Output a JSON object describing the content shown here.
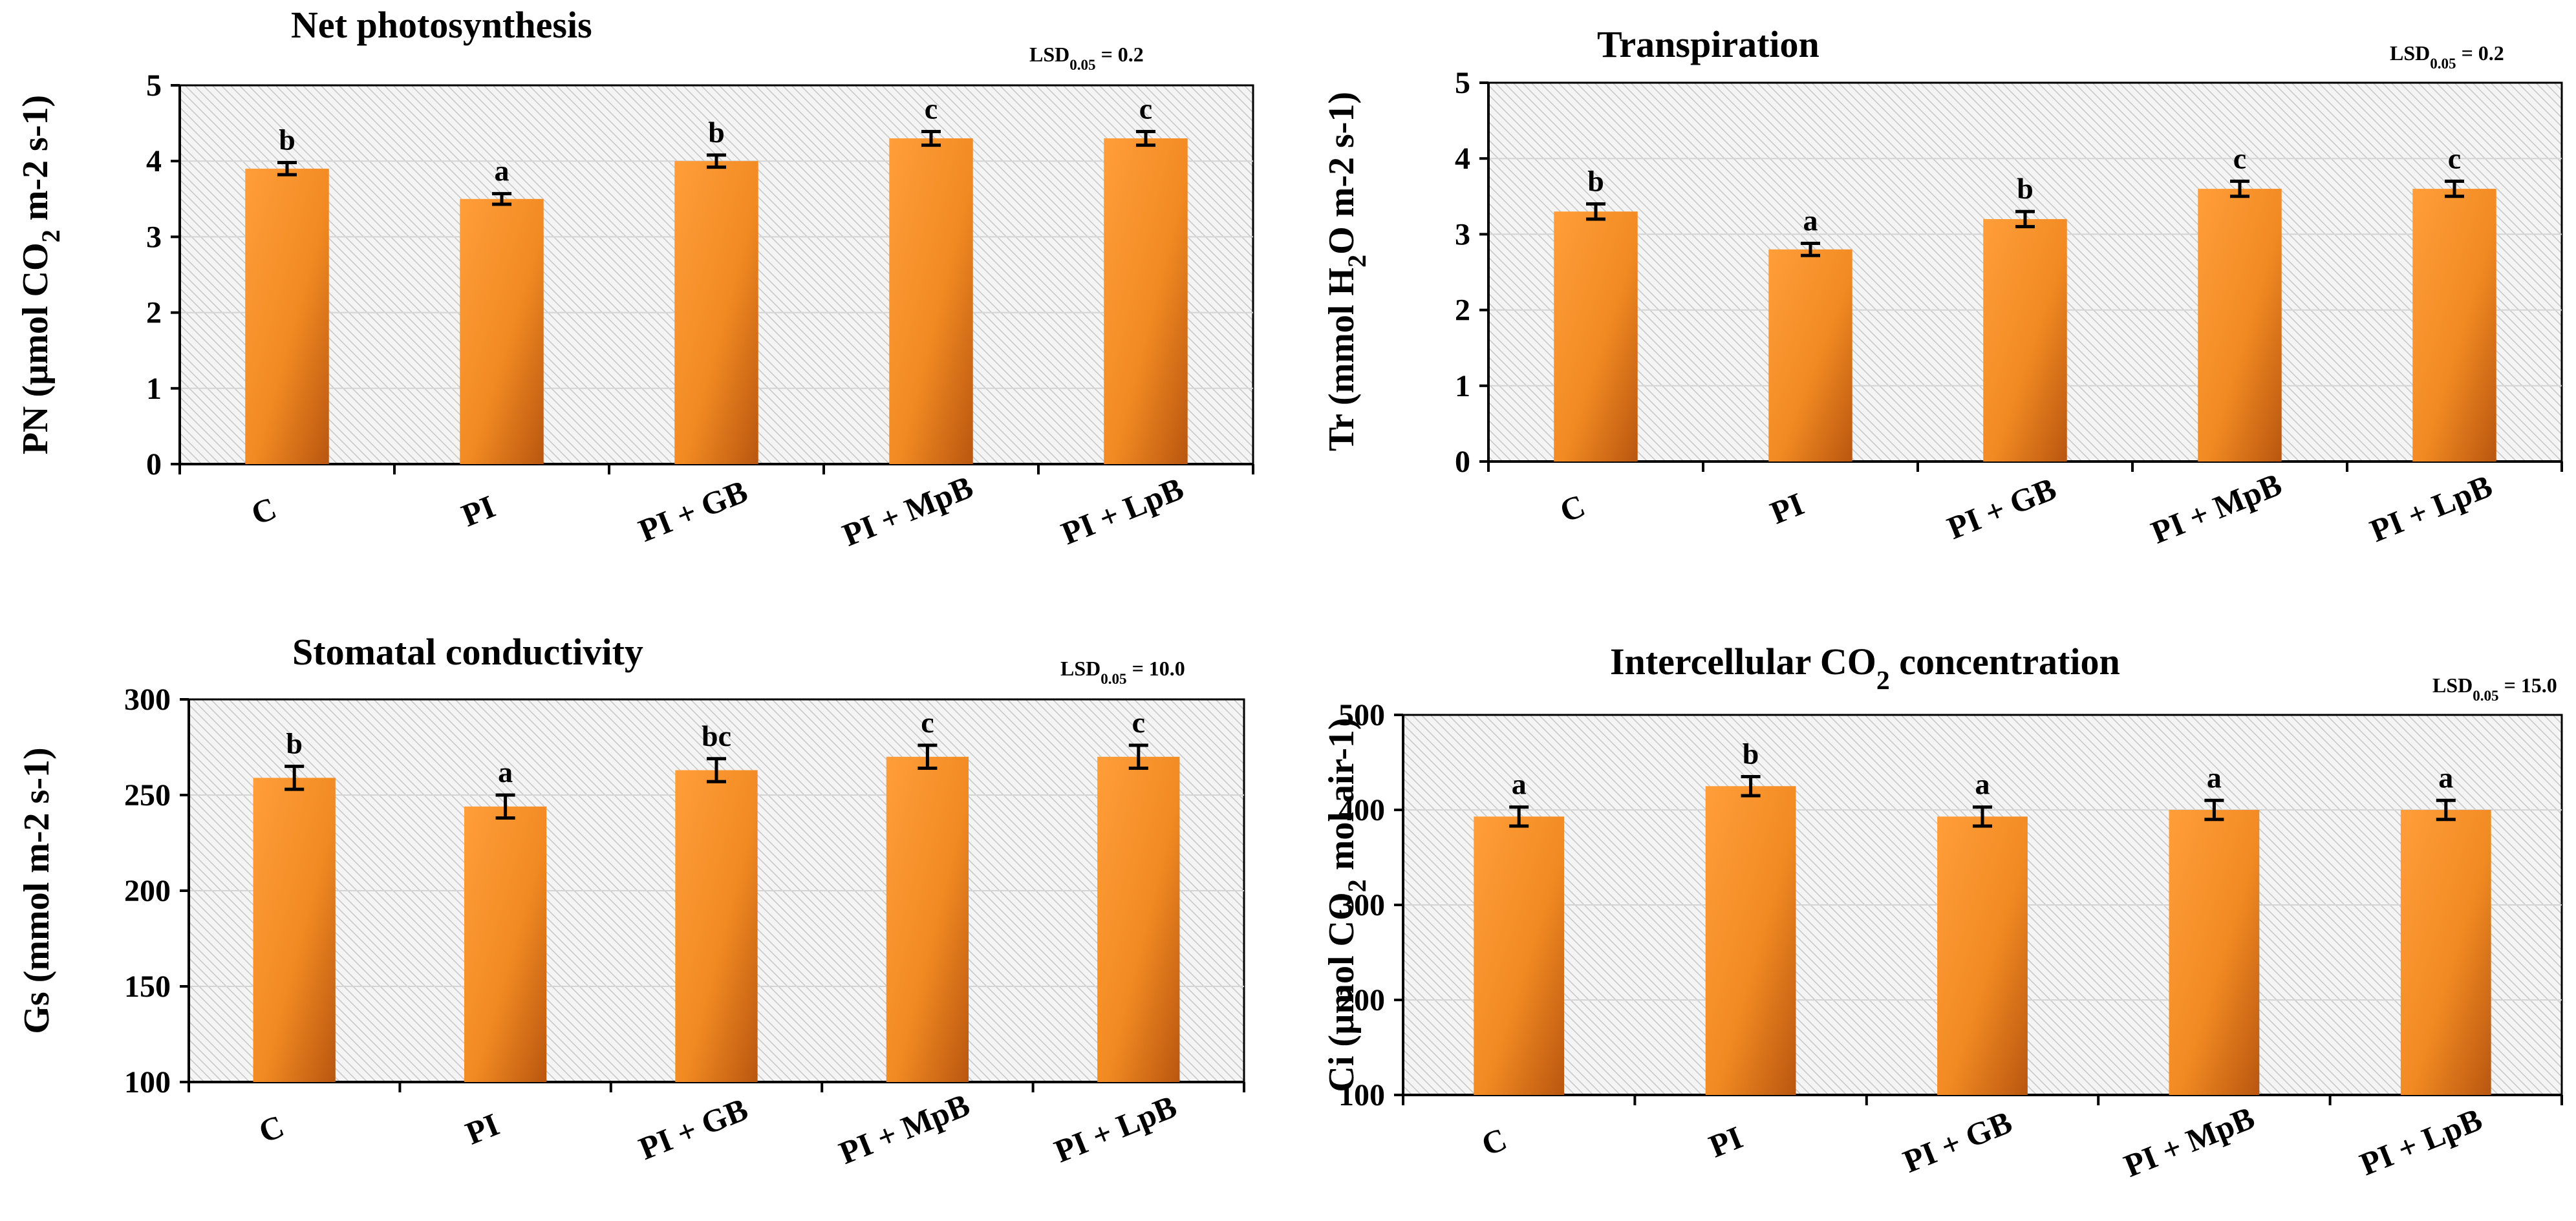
{
  "chart_data": [
    {
      "type": "bar",
      "title_parts": [
        "Net photosynthesis"
      ],
      "ylabel_parts": [
        {
          "t": "PN (µmol CO"
        },
        {
          "t": "2",
          "sub": true
        },
        {
          "t": " m-2 s-1)"
        }
      ],
      "lsd_parts": [
        {
          "t": "LSD"
        },
        {
          "t": "0.05",
          "sub": true
        },
        {
          "t": " = 0.2"
        }
      ],
      "categories": [
        "C",
        "PI",
        "PI + GB",
        "PI + MpB",
        "PI + LpB"
      ],
      "values": [
        3.9,
        3.5,
        4.0,
        4.3,
        4.3
      ],
      "errors": [
        0.08,
        0.07,
        0.08,
        0.09,
        0.09
      ],
      "letters": [
        "b",
        "a",
        "b",
        "c",
        "c"
      ],
      "ylim": [
        0,
        5
      ],
      "yticks": [
        0,
        1,
        2,
        3,
        4,
        5
      ]
    },
    {
      "type": "bar",
      "title_parts": [
        "Transpiration"
      ],
      "ylabel_parts": [
        {
          "t": "Tr (mmol H"
        },
        {
          "t": "2",
          "sub": true
        },
        {
          "t": "O m-2 s-1)"
        }
      ],
      "lsd_parts": [
        {
          "t": "LSD"
        },
        {
          "t": "0.05",
          "sub": true
        },
        {
          "t": " = 0.2"
        }
      ],
      "categories": [
        "C",
        "PI",
        "PI + GB",
        "PI + MpB",
        "PI + LpB"
      ],
      "values": [
        3.3,
        2.8,
        3.2,
        3.6,
        3.6
      ],
      "errors": [
        0.1,
        0.08,
        0.1,
        0.1,
        0.1
      ],
      "letters": [
        "b",
        "a",
        "b",
        "c",
        "c"
      ],
      "ylim": [
        0,
        5
      ],
      "yticks": [
        0,
        1,
        2,
        3,
        4,
        5
      ]
    },
    {
      "type": "bar",
      "title_parts": [
        "Stomatal conductivity"
      ],
      "ylabel_parts": [
        {
          "t": "Gs (mmol m-2 s-1)"
        }
      ],
      "lsd_parts": [
        {
          "t": "LSD"
        },
        {
          "t": "0.05",
          "sub": true
        },
        {
          "t": " = 10.0"
        }
      ],
      "categories": [
        "C",
        "PI",
        "PI + GB",
        "PI + MpB",
        "PI + LpB"
      ],
      "values": [
        259,
        244,
        263,
        270,
        270
      ],
      "errors": [
        6,
        6,
        6,
        6,
        6
      ],
      "letters": [
        "b",
        "a",
        "bc",
        "c",
        "c"
      ],
      "ylim": [
        100,
        300
      ],
      "yticks": [
        100,
        150,
        200,
        250,
        300
      ]
    },
    {
      "type": "bar",
      "title_parts": [
        {
          "t": "Intercellular CO"
        },
        {
          "t": "2",
          "sub": true
        },
        {
          "t": " concentration"
        }
      ],
      "ylabel_parts": [
        {
          "t": "Ci (µmol CO"
        },
        {
          "t": "2",
          "sub": true
        },
        {
          "t": " mol air-1)"
        }
      ],
      "lsd_parts": [
        {
          "t": "LSD"
        },
        {
          "t": "0.05",
          "sub": true
        },
        {
          "t": " = 15.0"
        }
      ],
      "categories": [
        "C",
        "PI",
        "PI + GB",
        "PI + MpB",
        "PI + LpB"
      ],
      "values": [
        393,
        425,
        393,
        400,
        400
      ],
      "errors": [
        10,
        10,
        10,
        10,
        10
      ],
      "letters": [
        "a",
        "b",
        "a",
        "a",
        "a"
      ],
      "ylim": [
        100,
        500
      ],
      "yticks": [
        100,
        200,
        300,
        400,
        500
      ]
    }
  ]
}
